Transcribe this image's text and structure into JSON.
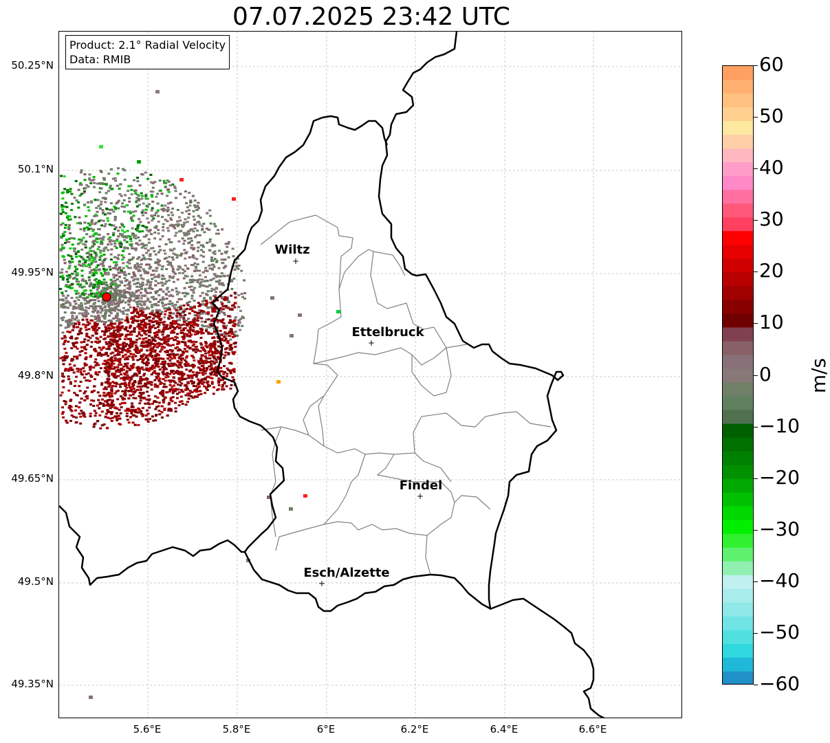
{
  "title": "07.07.2025 23:42 UTC",
  "info_box": {
    "product": "Product: 2.1° Radial Velocity",
    "data_source": "Data: RMIB"
  },
  "axes": {
    "lat_labels": [
      "50.25°N",
      "50.1°N",
      "49.95°N",
      "49.8°N",
      "49.65°N",
      "49.5°N",
      "49.35°N"
    ],
    "lon_labels": [
      "5.6°E",
      "5.8°E",
      "6°E",
      "6.2°E",
      "6.4°E",
      "6.6°E"
    ]
  },
  "cities": [
    {
      "name": "Wiltz"
    },
    {
      "name": "Ettelbruck"
    },
    {
      "name": "Findel"
    },
    {
      "name": "Esch/Alzette"
    }
  ],
  "radar_site_marker": "red-dot",
  "colorbar": {
    "unit": "m/s",
    "tick_labels": [
      "60",
      "50",
      "40",
      "30",
      "20",
      "10",
      "0",
      "−10",
      "−20",
      "−30",
      "−40",
      "−50",
      "−60"
    ],
    "range": [
      -60,
      60
    ],
    "colors_top_to_bottom": [
      "#ffa060",
      "#ffb070",
      "#ffc080",
      "#ffd090",
      "#ffe8a0",
      "#ffd0a8",
      "#ffb8c0",
      "#ff9cc8",
      "#ff88c8",
      "#ff70a0",
      "#ff5878",
      "#ff4060",
      "#ff0000",
      "#e80000",
      "#d00000",
      "#b80000",
      "#a00000",
      "#880000",
      "#700000",
      "#804050",
      "#886068",
      "#887078",
      "#887878",
      "#708068",
      "#608060",
      "#507050",
      "#006000",
      "#007000",
      "#008000",
      "#009000",
      "#00a800",
      "#00c000",
      "#00d800",
      "#00f000",
      "#30f030",
      "#60f070",
      "#90f0b0",
      "#c0f0f0",
      "#a8ecec",
      "#90e8e8",
      "#70e4e4",
      "#50e0e0",
      "#30d8e0",
      "#20b8d8",
      "#2090c8"
    ]
  },
  "colors": {
    "border": "#000000",
    "canton_lines": "#808080",
    "grid": "#c0c0c0",
    "radar_site": "#ff0000"
  }
}
